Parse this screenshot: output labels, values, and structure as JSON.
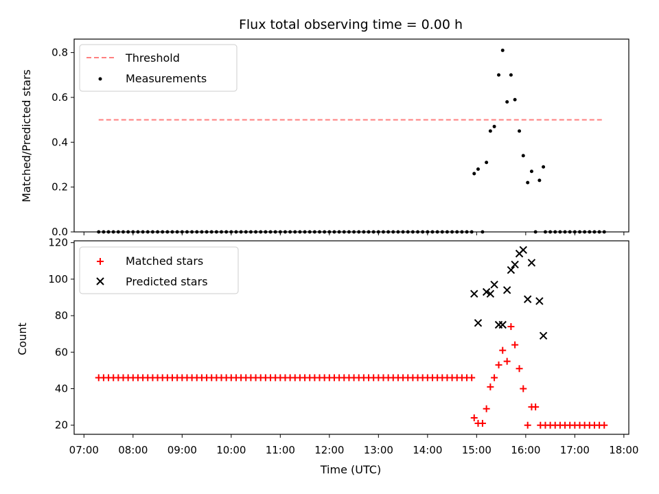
{
  "chart_data": [
    {
      "type": "scatter",
      "title": "Flux total observing time = 0.00 h",
      "xlabel": "",
      "ylabel": "Matched/Predicted stars",
      "xlim": [
        6.8,
        18.1
      ],
      "ylim": [
        0.0,
        0.86
      ],
      "yticks": [
        0.0,
        0.2,
        0.4,
        0.6,
        0.8
      ],
      "ytick_labels": [
        "0.0",
        "0.2",
        "0.4",
        "0.6",
        "0.8"
      ],
      "legend": {
        "placement": "top-left",
        "entries": [
          "Threshold",
          "Measurements"
        ]
      },
      "colors": {
        "threshold": "#ff7f7f",
        "measurements": "#000000"
      },
      "threshold": {
        "name": "Threshold",
        "value": 0.5,
        "x_start": 7.3,
        "x_end": 17.6
      },
      "series": [
        {
          "name": "Measurements",
          "constant_runs": [
            {
              "x_start": 7.3,
              "x_end": 14.9,
              "step": 0.1,
              "y": 0.0
            },
            {
              "x_start": 16.4,
              "x_end": 17.6,
              "step": 0.1,
              "y": 0.0
            }
          ],
          "points": [
            [
              14.95,
              0.26
            ],
            [
              15.03,
              0.28
            ],
            [
              15.12,
              0.0
            ],
            [
              15.2,
              0.31
            ],
            [
              15.28,
              0.45
            ],
            [
              15.36,
              0.47
            ],
            [
              15.45,
              0.7
            ],
            [
              15.53,
              0.81
            ],
            [
              15.62,
              0.58
            ],
            [
              15.7,
              0.7
            ],
            [
              15.78,
              0.59
            ],
            [
              15.87,
              0.45
            ],
            [
              15.95,
              0.34
            ],
            [
              16.04,
              0.22
            ],
            [
              16.12,
              0.27
            ],
            [
              16.2,
              0.0
            ],
            [
              16.28,
              0.23
            ],
            [
              16.36,
              0.29
            ]
          ]
        }
      ]
    },
    {
      "type": "scatter",
      "title": "",
      "xlabel": "Time (UTC)",
      "ylabel": "Count",
      "xlim": [
        6.8,
        18.1
      ],
      "ylim": [
        15,
        121
      ],
      "xticks": [
        7,
        8,
        9,
        10,
        11,
        12,
        13,
        14,
        15,
        16,
        17,
        18
      ],
      "xtick_labels": [
        "07:00",
        "08:00",
        "09:00",
        "10:00",
        "11:00",
        "12:00",
        "13:00",
        "14:00",
        "15:00",
        "16:00",
        "17:00",
        "18:00"
      ],
      "yticks": [
        20,
        40,
        60,
        80,
        100,
        120
      ],
      "ytick_labels": [
        "20",
        "40",
        "60",
        "80",
        "100",
        "120"
      ],
      "legend": {
        "placement": "top-left",
        "entries": [
          "Matched stars",
          "Predicted stars"
        ]
      },
      "colors": {
        "matched": "#ff0000",
        "predicted": "#000000"
      },
      "series": [
        {
          "name": "Matched stars",
          "marker": "plus",
          "constant_runs": [
            {
              "x_start": 7.3,
              "x_end": 14.9,
              "step": 0.1,
              "y": 46
            },
            {
              "x_start": 16.3,
              "x_end": 17.6,
              "step": 0.1,
              "y": 20
            }
          ],
          "points": [
            [
              14.95,
              24
            ],
            [
              15.03,
              21
            ],
            [
              15.12,
              21
            ],
            [
              15.2,
              29
            ],
            [
              15.28,
              41
            ],
            [
              15.36,
              46
            ],
            [
              15.45,
              53
            ],
            [
              15.53,
              61
            ],
            [
              15.62,
              55
            ],
            [
              15.7,
              74
            ],
            [
              15.78,
              64
            ],
            [
              15.87,
              51
            ],
            [
              15.95,
              40
            ],
            [
              16.04,
              20
            ],
            [
              16.12,
              30
            ],
            [
              16.2,
              30
            ]
          ]
        },
        {
          "name": "Predicted stars",
          "marker": "x",
          "points": [
            [
              14.95,
              92
            ],
            [
              15.03,
              76
            ],
            [
              15.2,
              93
            ],
            [
              15.28,
              92
            ],
            [
              15.36,
              97
            ],
            [
              15.45,
              75
            ],
            [
              15.53,
              75
            ],
            [
              15.62,
              94
            ],
            [
              15.7,
              105
            ],
            [
              15.78,
              108
            ],
            [
              15.87,
              114
            ],
            [
              15.95,
              116
            ],
            [
              16.04,
              89
            ],
            [
              16.12,
              109
            ],
            [
              16.28,
              88
            ],
            [
              16.36,
              69
            ]
          ]
        }
      ]
    }
  ]
}
